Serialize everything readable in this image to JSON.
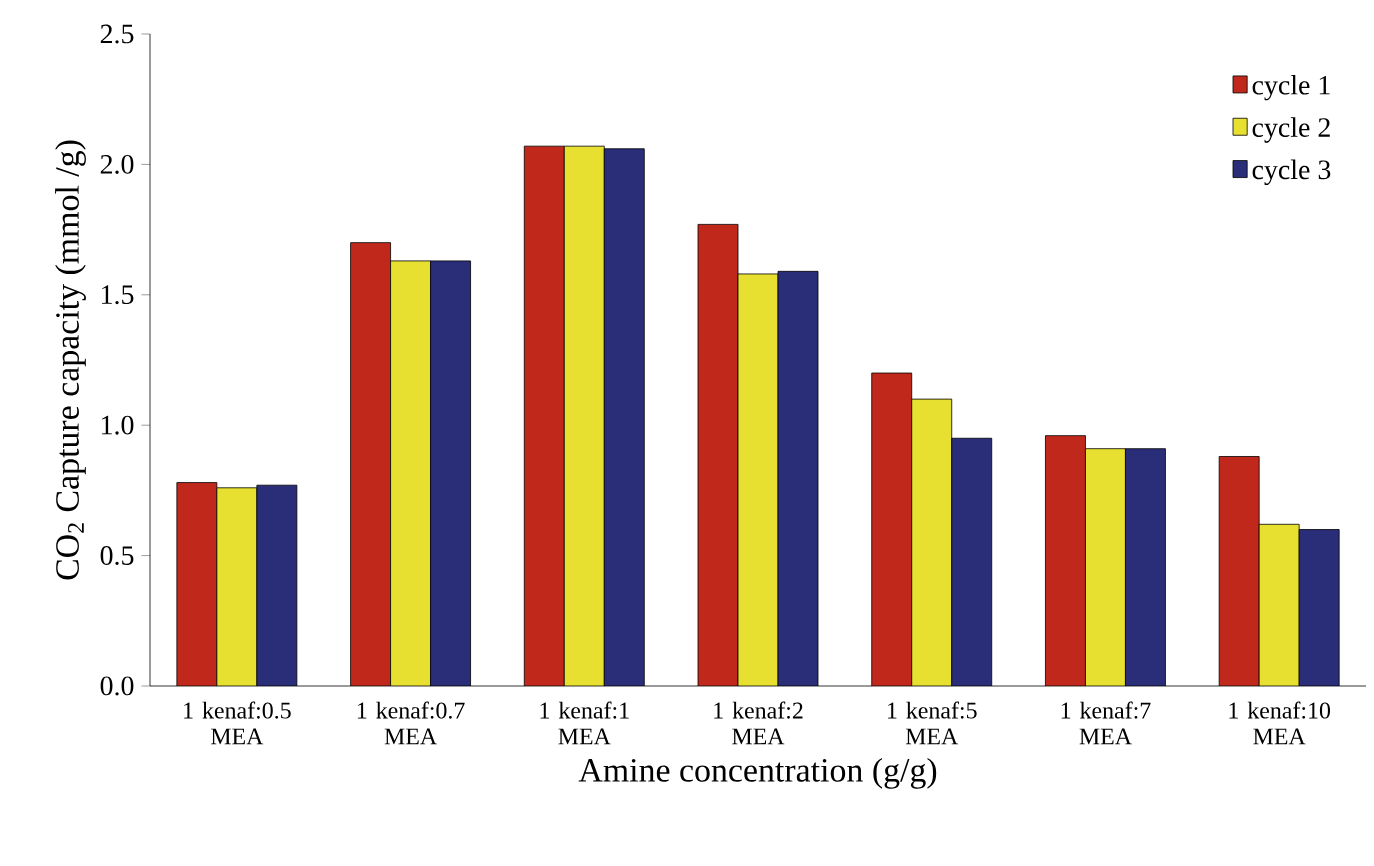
{
  "chart_data": {
    "type": "bar",
    "xlabel": "Amine concentration (g/g)",
    "ylabel": "CO$_{2}$ Capture capacity (mmol /g)",
    "categories": [
      "1 kenaf:0.5 MEA",
      "1 kenaf:0.7 MEA",
      "1 kenaf:1 MEA",
      "1 kenaf:2 MEA",
      "1 kenaf:5 MEA",
      "1 kenaf:7 MEA",
      "1 kenaf:10 MEA"
    ],
    "series": [
      {
        "name": "cycle 1",
        "color": "#c0281c",
        "values": [
          0.78,
          1.7,
          2.07,
          1.77,
          1.2,
          0.96,
          0.88
        ]
      },
      {
        "name": "cycle 2",
        "color": "#e8e030",
        "values": [
          0.76,
          1.63,
          2.07,
          1.58,
          1.1,
          0.91,
          0.62
        ]
      },
      {
        "name": "cycle 3",
        "color": "#2a2e78",
        "values": [
          0.77,
          1.63,
          2.06,
          1.59,
          0.95,
          0.91,
          0.6
        ]
      }
    ],
    "ylim": [
      0,
      2.5
    ],
    "yticks": [
      {
        "value": 0,
        "label": "0.0"
      },
      {
        "value": 0.5,
        "label": "0.5"
      },
      {
        "value": 1,
        "label": "1.0"
      },
      {
        "value": 1.5,
        "label": "1.5"
      },
      {
        "value": 2,
        "label": "2.0"
      },
      {
        "value": 2.5,
        "label": "2.5"
      }
    ],
    "legend": "top right",
    "grid": false
  }
}
